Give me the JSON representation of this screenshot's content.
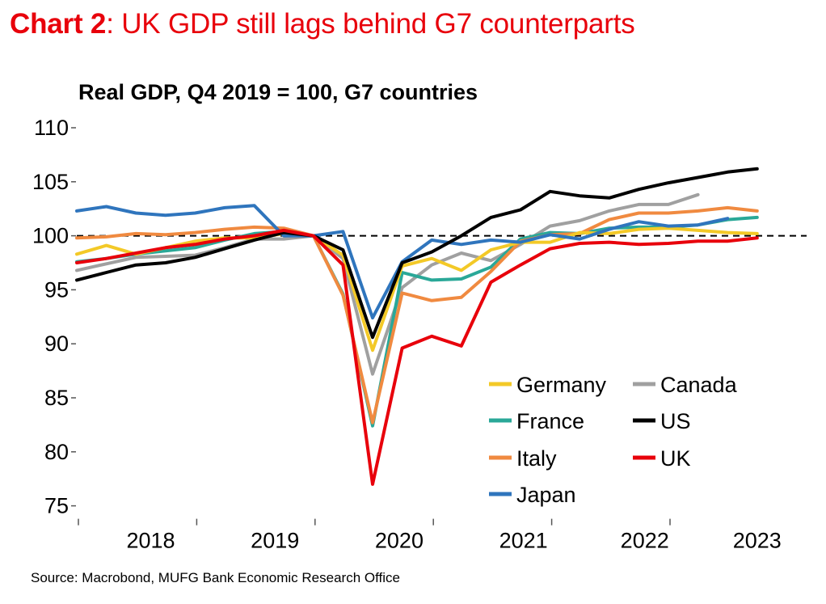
{
  "headline": {
    "prefix": "Chart 2",
    "rest": ": UK GDP still lags behind G7 counterparts"
  },
  "source": "Source: Macrobond, MUFG Bank Economic Research Office",
  "chart_data": {
    "type": "line",
    "title": "Real GDP, Q4 2019 = 100, G7 countries",
    "xlabel": "",
    "ylabel": "",
    "ylim": [
      75,
      110
    ],
    "yticks": [
      "110",
      "105",
      "100",
      "95",
      "90",
      "85",
      "80",
      "75"
    ],
    "year_labels": [
      "2018",
      "2019",
      "2020",
      "2021",
      "2022",
      "2023"
    ],
    "reference_line": 100,
    "legend_position": "bottom-right, inside plot",
    "quarters": [
      "2017 Q4",
      "2018 Q1",
      "2018 Q2",
      "2018 Q3",
      "2018 Q4",
      "2019 Q1",
      "2019 Q2",
      "2019 Q3",
      "2019 Q4",
      "2020 Q1",
      "2020 Q2",
      "2020 Q3",
      "2020 Q4",
      "2021 Q1",
      "2021 Q2",
      "2021 Q3",
      "2021 Q4",
      "2022 Q1",
      "2022 Q2",
      "2022 Q3",
      "2022 Q4",
      "2023 Q1",
      "2023 Q2",
      "2023 Q3"
    ],
    "series": [
      {
        "name": "Germany",
        "color": "#f3c927",
        "values": [
          98.3,
          99.1,
          98.3,
          98.9,
          99.5,
          99.8,
          99.8,
          100.2,
          100.0,
          98.2,
          89.4,
          97.2,
          97.9,
          96.8,
          98.7,
          99.4,
          99.4,
          100.3,
          100.2,
          100.6,
          100.7,
          100.5,
          100.3,
          100.2
        ]
      },
      {
        "name": "Canada",
        "color": "#a0a0a0",
        "values": [
          96.8,
          97.4,
          98.0,
          98.1,
          98.2,
          98.9,
          99.7,
          99.7,
          100.0,
          97.9,
          87.2,
          95.2,
          97.3,
          98.4,
          97.7,
          99.2,
          100.9,
          101.4,
          102.3,
          102.9,
          102.9,
          103.8,
          null,
          null
        ]
      },
      {
        "name": "France",
        "color": "#2aa898",
        "values": [
          97.6,
          97.9,
          98.3,
          98.6,
          98.9,
          99.6,
          100.2,
          100.4,
          100.0,
          94.6,
          82.4,
          96.6,
          95.9,
          96.0,
          97.1,
          99.7,
          100.3,
          100.2,
          100.7,
          100.8,
          100.8,
          101.0,
          101.5,
          101.7
        ]
      },
      {
        "name": "US",
        "color": "#000000",
        "values": [
          95.9,
          96.6,
          97.3,
          97.5,
          98.0,
          98.8,
          99.6,
          100.3,
          100.0,
          98.7,
          90.6,
          97.5,
          98.5,
          100.0,
          101.7,
          102.4,
          104.1,
          103.7,
          103.5,
          104.3,
          104.9,
          105.4,
          105.9,
          106.2
        ]
      },
      {
        "name": "Italy",
        "color": "#f08a40",
        "values": [
          99.8,
          99.9,
          100.2,
          100.1,
          100.3,
          100.6,
          100.8,
          100.7,
          100.0,
          94.5,
          82.7,
          94.7,
          94.0,
          94.3,
          96.7,
          99.5,
          100.1,
          100.2,
          101.5,
          102.1,
          102.1,
          102.3,
          102.6,
          102.3
        ]
      },
      {
        "name": "UK",
        "color": "#e8000b",
        "values": [
          97.5,
          97.9,
          98.4,
          98.9,
          99.2,
          99.7,
          100.0,
          100.5,
          100.0,
          97.3,
          77.0,
          89.6,
          90.7,
          89.8,
          95.7,
          97.3,
          98.8,
          99.3,
          99.4,
          99.2,
          99.3,
          99.5,
          99.5,
          99.8
        ]
      },
      {
        "name": "Japan",
        "color": "#2f75bd",
        "values": [
          102.3,
          102.7,
          102.1,
          101.9,
          102.1,
          102.6,
          102.8,
          100.0,
          100.0,
          100.4,
          92.4,
          97.6,
          99.6,
          99.2,
          99.6,
          99.4,
          100.1,
          99.7,
          100.6,
          101.3,
          100.9,
          101.0,
          101.6,
          null
        ]
      }
    ]
  }
}
